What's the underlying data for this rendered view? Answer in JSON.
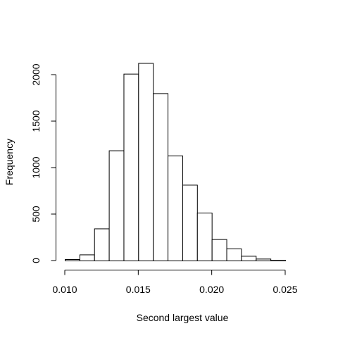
{
  "chart_data": {
    "type": "bar",
    "subtype": "histogram",
    "title": "",
    "xlabel": "Second largest value",
    "ylabel": "Frequency",
    "xlim": [
      0.009,
      0.0265
    ],
    "ylim": [
      0,
      2150
    ],
    "bins": [
      {
        "start": 0.01,
        "end": 0.011,
        "count": 15
      },
      {
        "start": 0.011,
        "end": 0.012,
        "count": 65
      },
      {
        "start": 0.012,
        "end": 0.013,
        "count": 345
      },
      {
        "start": 0.013,
        "end": 0.014,
        "count": 1185
      },
      {
        "start": 0.014,
        "end": 0.015,
        "count": 2010
      },
      {
        "start": 0.015,
        "end": 0.016,
        "count": 2125
      },
      {
        "start": 0.016,
        "end": 0.017,
        "count": 1800
      },
      {
        "start": 0.017,
        "end": 0.018,
        "count": 1130
      },
      {
        "start": 0.018,
        "end": 0.019,
        "count": 815
      },
      {
        "start": 0.019,
        "end": 0.02,
        "count": 515
      },
      {
        "start": 0.02,
        "end": 0.021,
        "count": 230
      },
      {
        "start": 0.021,
        "end": 0.022,
        "count": 130
      },
      {
        "start": 0.022,
        "end": 0.023,
        "count": 50
      },
      {
        "start": 0.023,
        "end": 0.024,
        "count": 20
      },
      {
        "start": 0.024,
        "end": 0.025,
        "count": 5
      }
    ],
    "x_ticks": [
      {
        "value": 0.01,
        "label": "0.010"
      },
      {
        "value": 0.015,
        "label": "0.015"
      },
      {
        "value": 0.02,
        "label": "0.020"
      },
      {
        "value": 0.025,
        "label": "0.025"
      }
    ],
    "y_ticks": [
      {
        "value": 0,
        "label": "0"
      },
      {
        "value": 500,
        "label": "500"
      },
      {
        "value": 1000,
        "label": "1000"
      },
      {
        "value": 1500,
        "label": "1500"
      },
      {
        "value": 2000,
        "label": "2000"
      }
    ],
    "grid": false,
    "legend": "none"
  }
}
